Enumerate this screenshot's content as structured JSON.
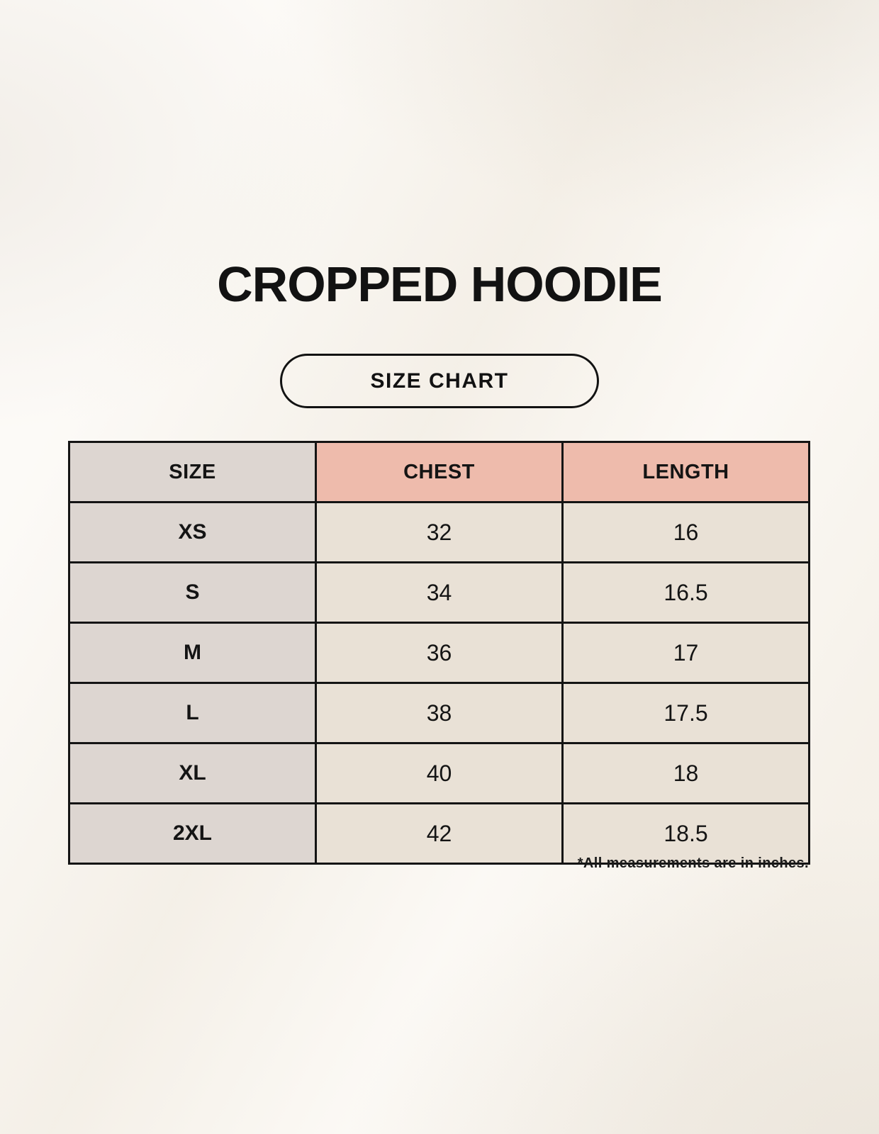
{
  "title": "CROPPED HOODIE",
  "badge": {
    "label": "SIZE CHART"
  },
  "table": {
    "headers": [
      "SIZE",
      "CHEST",
      "LENGTH"
    ],
    "rows": [
      {
        "size": "XS",
        "chest": "32",
        "length": "16"
      },
      {
        "size": "S",
        "chest": "34",
        "length": "16.5"
      },
      {
        "size": "M",
        "chest": "36",
        "length": "17"
      },
      {
        "size": "L",
        "chest": "38",
        "length": "17.5"
      },
      {
        "size": "XL",
        "chest": "40",
        "length": "18"
      },
      {
        "size": "2XL",
        "chest": "42",
        "length": "18.5"
      }
    ]
  },
  "footnote": "*All measurements are in inches.",
  "colors": {
    "background": "#f9f5ee",
    "header_accent": "#eebbac",
    "label_column": "#ddd6d1",
    "data_cell": "#e9e1d6",
    "border": "#141414"
  }
}
